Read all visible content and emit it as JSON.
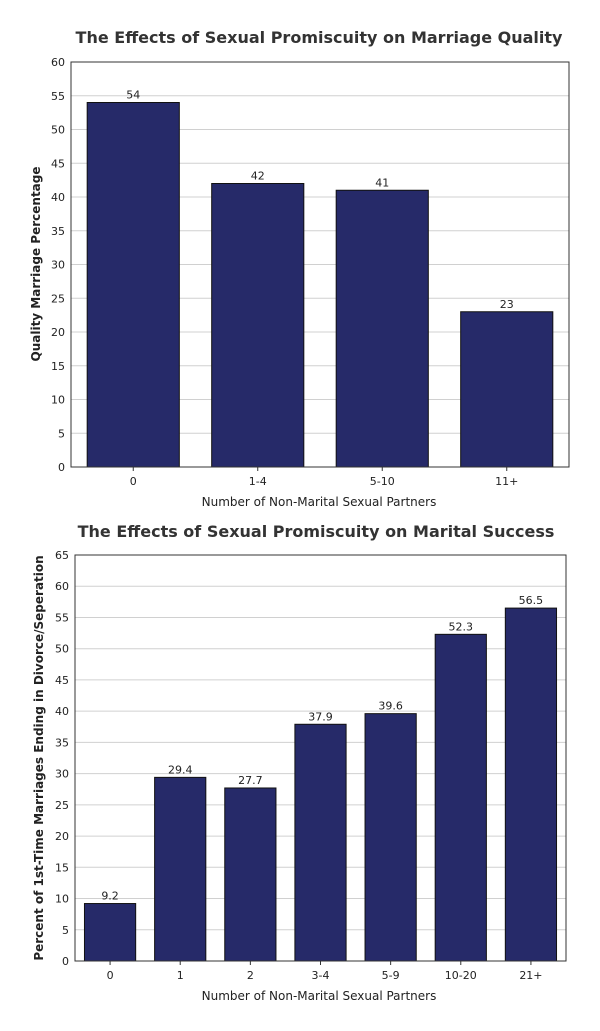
{
  "chart_data": [
    {
      "type": "bar",
      "title": "The Effects of Sexual Promiscuity on Marriage Quality",
      "xlabel": "Number of Non-Marital Sexual Partners",
      "ylabel": "Quality Marriage Percentage",
      "categories": [
        "0",
        "1-4",
        "5-10",
        "11+"
      ],
      "values": [
        54,
        42,
        41,
        23
      ],
      "value_labels": [
        "54",
        "42",
        "41",
        "23"
      ],
      "ylim": [
        0,
        60
      ],
      "ytick_step": 5,
      "grid": true,
      "bar_color": "#262a69"
    },
    {
      "type": "bar",
      "title": "The Effects of Sexual Promiscuity on Marital Success",
      "xlabel": "Number of Non-Marital Sexual Partners",
      "ylabel": "Percent of 1st-Time Marriages Ending in Divorce/Seperation",
      "categories": [
        "0",
        "1",
        "2",
        "3-4",
        "5-9",
        "10-20",
        "21+"
      ],
      "values": [
        9.2,
        29.4,
        27.7,
        37.9,
        39.6,
        52.3,
        56.5
      ],
      "value_labels": [
        "9.2",
        "29.4",
        "27.7",
        "37.9",
        "39.6",
        "52.3",
        "56.5"
      ],
      "ylim": [
        0,
        65
      ],
      "ytick_step": 5,
      "grid": true,
      "bar_color": "#262a69"
    }
  ]
}
